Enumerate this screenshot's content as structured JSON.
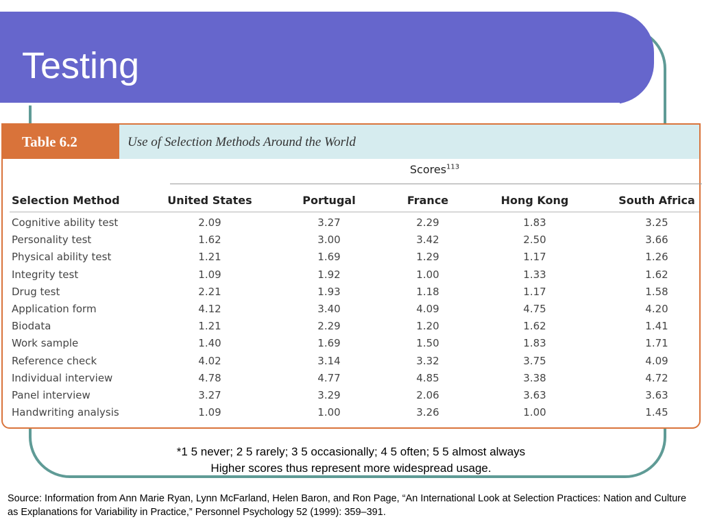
{
  "slide": {
    "title": "Testing"
  },
  "table": {
    "label": "Table 6.2",
    "caption": "Use of Selection Methods Around the World",
    "scores_label": "Scores",
    "scores_footnote": "113",
    "method_header": "Selection Method",
    "columns": [
      "United States",
      "Portugal",
      "France",
      "Hong Kong",
      "South Africa"
    ],
    "rows": [
      {
        "method": "Cognitive ability test",
        "values": [
          "2.09",
          "3.27",
          "2.29",
          "1.83",
          "3.25"
        ]
      },
      {
        "method": "Personality test",
        "values": [
          "1.62",
          "3.00",
          "3.42",
          "2.50",
          "3.66"
        ]
      },
      {
        "method": "Physical ability test",
        "values": [
          "1.21",
          "1.69",
          "1.29",
          "1.17",
          "1.26"
        ]
      },
      {
        "method": "Integrity test",
        "values": [
          "1.09",
          "1.92",
          "1.00",
          "1.33",
          "1.62"
        ]
      },
      {
        "method": "Drug test",
        "values": [
          "2.21",
          "1.93",
          "1.18",
          "1.17",
          "1.58"
        ]
      },
      {
        "method": "Application form",
        "values": [
          "4.12",
          "3.40",
          "4.09",
          "4.75",
          "4.20"
        ]
      },
      {
        "method": "Biodata",
        "values": [
          "1.21",
          "2.29",
          "1.20",
          "1.62",
          "1.41"
        ]
      },
      {
        "method": "Work sample",
        "values": [
          "1.40",
          "1.69",
          "1.50",
          "1.83",
          "1.71"
        ]
      },
      {
        "method": "Reference check",
        "values": [
          "4.02",
          "3.14",
          "3.32",
          "3.75",
          "4.09"
        ]
      },
      {
        "method": "Individual interview",
        "values": [
          "4.78",
          "4.77",
          "4.85",
          "3.38",
          "4.72"
        ]
      },
      {
        "method": "Panel interview",
        "values": [
          "3.27",
          "3.29",
          "2.06",
          "3.63",
          "3.63"
        ]
      },
      {
        "method": "Handwriting analysis",
        "values": [
          "1.09",
          "1.00",
          "3.26",
          "1.00",
          "1.45"
        ]
      }
    ]
  },
  "note": {
    "line1": "*1 5 never; 2 5 rarely; 3 5 occasionally; 4 5 often; 5 5 almost always",
    "line2": "Higher scores thus represent more widespread usage."
  },
  "source": "Source: Information from Ann Marie Ryan, Lynn McFarland, Helen Baron, and Ron Page, “An International Look at Selection Practices: Nation and Culture as Explanations for Variability in Practice,” Personnel Psychology 52 (1999): 359–391."
}
